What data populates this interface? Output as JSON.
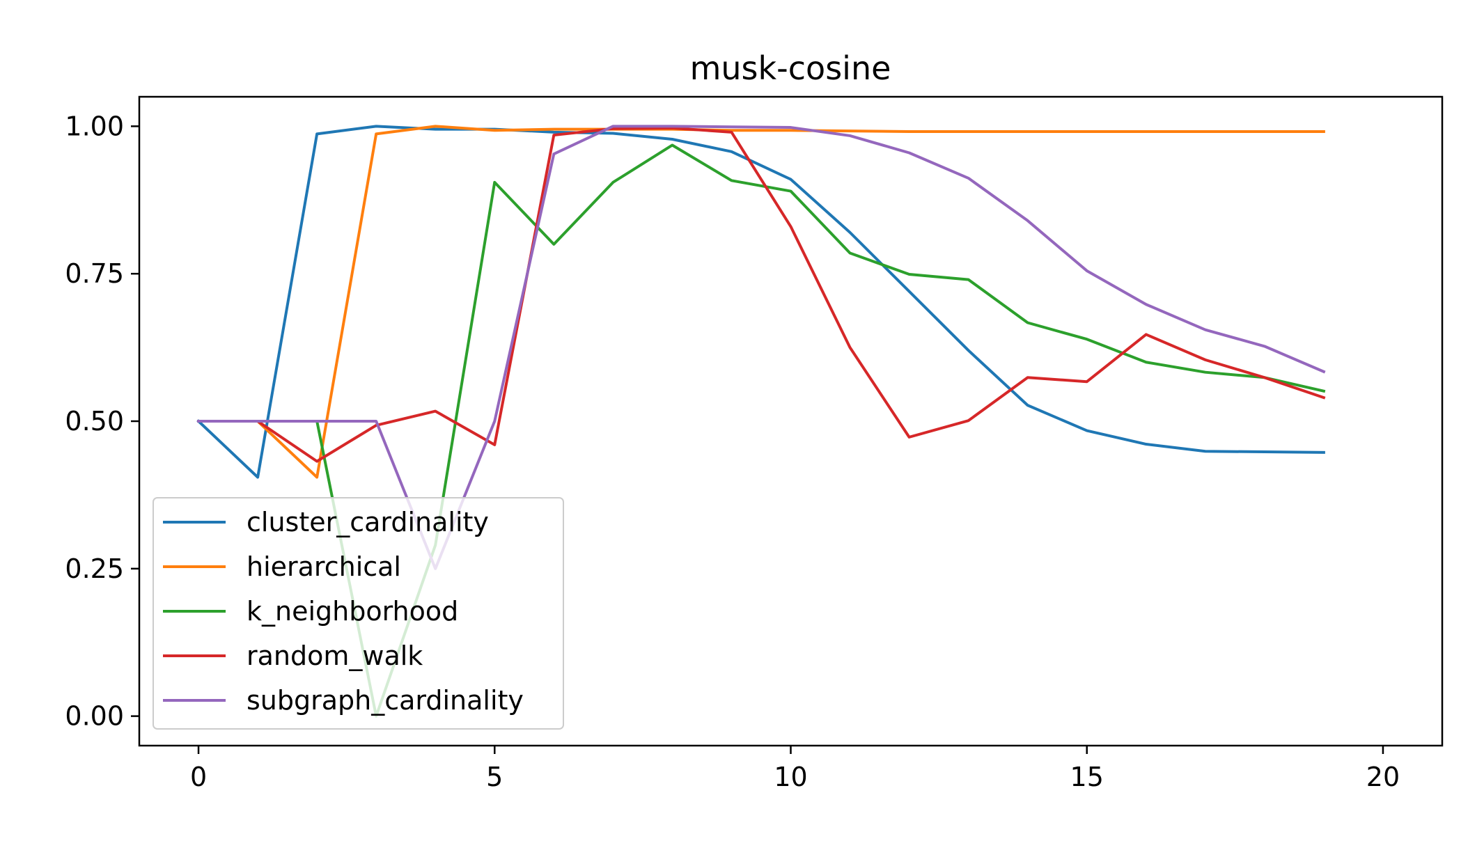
{
  "chart_data": {
    "type": "line",
    "title": "musk-cosine",
    "xlabel": "",
    "ylabel": "",
    "xlim": [
      -1,
      21
    ],
    "ylim": [
      -0.05,
      1.05
    ],
    "x_ticks": [
      0,
      5,
      10,
      15,
      20
    ],
    "y_ticks": [
      0.0,
      0.25,
      0.5,
      0.75,
      1.0
    ],
    "x_tick_labels": [
      "0",
      "5",
      "10",
      "15",
      "20"
    ],
    "y_tick_labels": [
      "0.00",
      "0.25",
      "0.50",
      "0.75",
      "1.00"
    ],
    "grid": false,
    "legend_position": "lower-left",
    "x": [
      0,
      1,
      2,
      3,
      4,
      5,
      6,
      7,
      8,
      9,
      10,
      11,
      12,
      13,
      14,
      15,
      16,
      17,
      18,
      19
    ],
    "series": [
      {
        "name": "cluster_cardinality",
        "color": "#1f77b4",
        "values": [
          0.5,
          0.405,
          0.987,
          1.0,
          0.995,
          0.995,
          0.99,
          0.988,
          0.978,
          0.957,
          0.91,
          0.82,
          0.72,
          0.62,
          0.527,
          0.484,
          0.461,
          0.449,
          0.448,
          0.447
        ]
      },
      {
        "name": "hierarchical",
        "color": "#ff7f0e",
        "values": [
          0.5,
          0.5,
          0.405,
          0.987,
          1.0,
          0.993,
          0.995,
          0.995,
          0.995,
          0.993,
          0.993,
          0.992,
          0.991,
          0.991,
          0.991,
          0.991,
          0.991,
          0.991,
          0.991,
          0.991
        ]
      },
      {
        "name": "k_neighborhood",
        "color": "#2ca02c",
        "values": [
          0.5,
          0.5,
          0.5,
          0.0,
          0.29,
          0.905,
          0.8,
          0.905,
          0.968,
          0.908,
          0.89,
          0.785,
          0.749,
          0.74,
          0.667,
          0.639,
          0.6,
          0.583,
          0.574,
          0.551
        ]
      },
      {
        "name": "random_walk",
        "color": "#d62728",
        "values": [
          0.5,
          0.5,
          0.432,
          0.493,
          0.517,
          0.46,
          0.985,
          0.996,
          0.997,
          0.99,
          0.83,
          0.625,
          0.473,
          0.501,
          0.574,
          0.567,
          0.647,
          0.604,
          0.574,
          0.54
        ]
      },
      {
        "name": "subgraph_cardinality",
        "color": "#9467bd",
        "values": [
          0.5,
          0.5,
          0.5,
          0.5,
          0.25,
          0.5,
          0.953,
          1.0,
          1.0,
          0.999,
          0.998,
          0.984,
          0.955,
          0.912,
          0.84,
          0.755,
          0.698,
          0.655,
          0.627,
          0.584
        ]
      }
    ]
  }
}
